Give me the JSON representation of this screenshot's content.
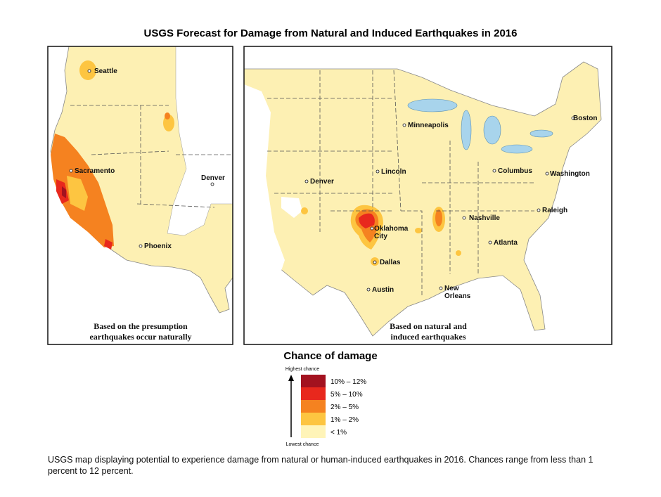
{
  "title": "USGS Forecast for Damage from Natural and Induced Earthquakes in 2016",
  "left_map": {
    "caption": [
      "Based on the presumption",
      "earthquakes occur naturally"
    ],
    "cities": [
      {
        "label": [
          "Seattle"
        ]
      },
      {
        "label": [
          "Sacramento"
        ]
      },
      {
        "label": [
          "Denver"
        ]
      },
      {
        "label": [
          "Phoenix"
        ]
      }
    ]
  },
  "right_map": {
    "caption": [
      "Based on natural and",
      "induced earthquakes"
    ],
    "cities": [
      {
        "label": [
          "Minneapolis"
        ]
      },
      {
        "label": [
          "Boston"
        ]
      },
      {
        "label": [
          "Denver"
        ]
      },
      {
        "label": [
          "Lincoln"
        ]
      },
      {
        "label": [
          "Columbus"
        ]
      },
      {
        "label": [
          "Washington"
        ]
      },
      {
        "label": [
          "Raleigh"
        ]
      },
      {
        "label": [
          "Nashville"
        ]
      },
      {
        "label": [
          "Oklahoma",
          "City"
        ]
      },
      {
        "label": [
          "Atlanta"
        ]
      },
      {
        "label": [
          "Dallas"
        ]
      },
      {
        "label": [
          "Austin"
        ]
      },
      {
        "label": [
          "New",
          "Orleans"
        ]
      }
    ]
  },
  "legend": {
    "title": "Chance of damage",
    "top_label": "Highest chance",
    "bottom_label": "Lowest chance",
    "items": [
      {
        "label": "10% – 12%",
        "color": "#a3121f"
      },
      {
        "label": "5% – 10%",
        "color": "#e8281d"
      },
      {
        "label": "2% – 5%",
        "color": "#f58220"
      },
      {
        "label": "1% – 2%",
        "color": "#fdc541"
      },
      {
        "label": "< 1%",
        "color": "#fff4b8"
      }
    ]
  },
  "caption": "USGS map displaying potential to experience damage from natural or human-induced earthquakes in 2016. Chances range from less than 1 percent to 12 percent."
}
